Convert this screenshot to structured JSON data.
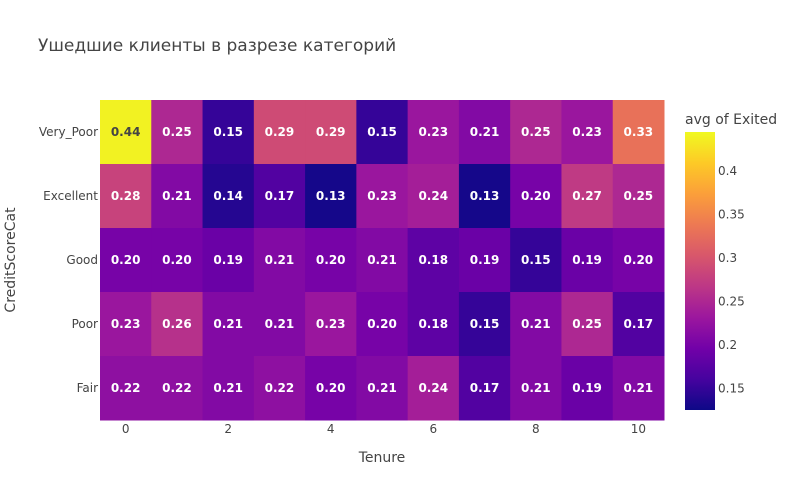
{
  "chart_data": {
    "type": "heatmap",
    "title": "Ушедшие клиенты в разрезе категорий",
    "xlabel": "Tenure",
    "ylabel": "CreditScoreCat",
    "x": [
      0,
      1,
      2,
      3,
      4,
      5,
      6,
      7,
      8,
      9,
      10
    ],
    "x_ticks": [
      "0",
      "2",
      "4",
      "6",
      "8",
      "10"
    ],
    "y": [
      "Very_Poor",
      "Excellent",
      "Good",
      "Poor",
      "Fair"
    ],
    "z": [
      [
        0.44,
        0.25,
        0.15,
        0.29,
        0.29,
        0.15,
        0.23,
        0.21,
        0.25,
        0.23,
        0.33
      ],
      [
        0.28,
        0.21,
        0.14,
        0.17,
        0.13,
        0.23,
        0.24,
        0.13,
        0.2,
        0.27,
        0.25
      ],
      [
        0.2,
        0.2,
        0.19,
        0.21,
        0.2,
        0.21,
        0.18,
        0.19,
        0.15,
        0.19,
        0.2
      ],
      [
        0.23,
        0.26,
        0.21,
        0.21,
        0.23,
        0.2,
        0.18,
        0.15,
        0.21,
        0.25,
        0.17
      ],
      [
        0.22,
        0.22,
        0.21,
        0.22,
        0.2,
        0.21,
        0.24,
        0.17,
        0.21,
        0.19,
        0.21
      ]
    ],
    "zrange": [
      0.125,
      0.445
    ],
    "colorbar": {
      "title": "avg of Exited",
      "ticks": [
        "0.15",
        "0.2",
        "0.25",
        "0.3",
        "0.35",
        "0.4"
      ]
    },
    "colorscale": [
      "#0d0887",
      "#46039f",
      "#7201a8",
      "#9c179e",
      "#bd3786",
      "#d8576b",
      "#ed7953",
      "#fb9f3a",
      "#fdca26",
      "#f0f921"
    ]
  }
}
